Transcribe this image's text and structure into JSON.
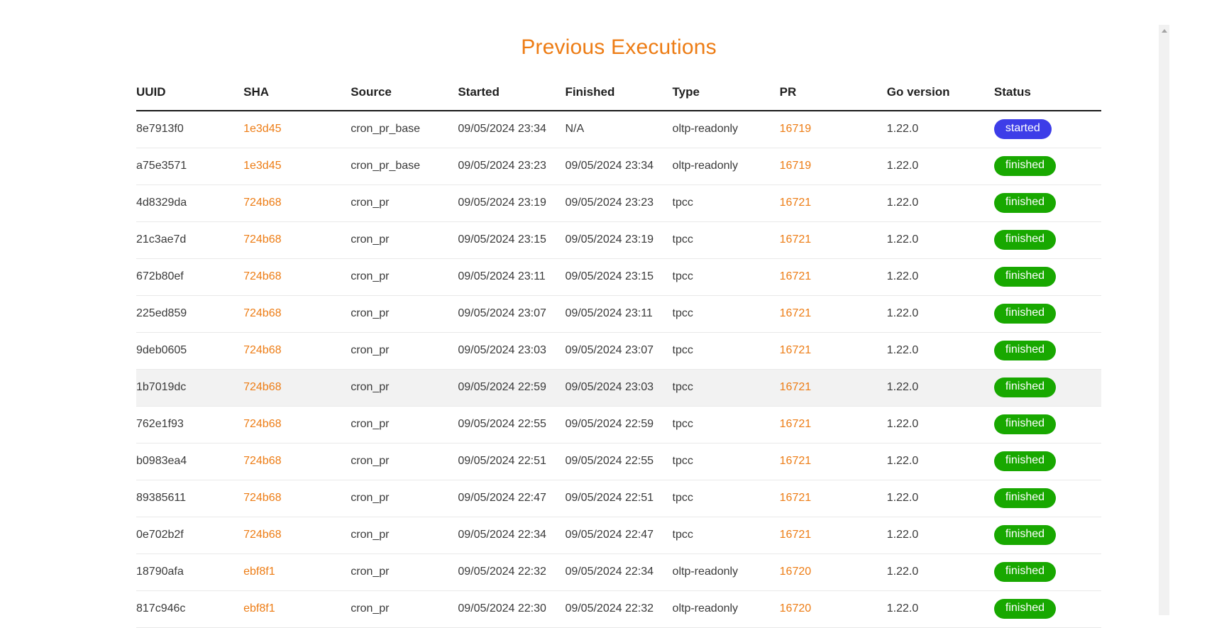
{
  "page": {
    "title": "Previous Executions",
    "title_color": "#ed7c14",
    "link_color": "#ed7c14",
    "background_color": "#ffffff"
  },
  "icons": {
    "scroll_up_arrow": "triangle-up"
  },
  "table": {
    "columns": [
      "UUID",
      "SHA",
      "Source",
      "Started",
      "Finished",
      "Type",
      "PR",
      "Go version",
      "Status"
    ],
    "status_colors": {
      "started": "#3d3de8",
      "finished": "#18a800"
    },
    "rows": [
      {
        "uuid": "8e7913f0",
        "sha": "1e3d45",
        "source": "cron_pr_base",
        "started": "09/05/2024 23:34",
        "finished": "N/A",
        "type": "oltp-readonly",
        "pr": "16719",
        "go_version": "1.22.0",
        "status": "started",
        "highlighted": false
      },
      {
        "uuid": "a75e3571",
        "sha": "1e3d45",
        "source": "cron_pr_base",
        "started": "09/05/2024 23:23",
        "finished": "09/05/2024 23:34",
        "type": "oltp-readonly",
        "pr": "16719",
        "go_version": "1.22.0",
        "status": "finished",
        "highlighted": false
      },
      {
        "uuid": "4d8329da",
        "sha": "724b68",
        "source": "cron_pr",
        "started": "09/05/2024 23:19",
        "finished": "09/05/2024 23:23",
        "type": "tpcc",
        "pr": "16721",
        "go_version": "1.22.0",
        "status": "finished",
        "highlighted": false
      },
      {
        "uuid": "21c3ae7d",
        "sha": "724b68",
        "source": "cron_pr",
        "started": "09/05/2024 23:15",
        "finished": "09/05/2024 23:19",
        "type": "tpcc",
        "pr": "16721",
        "go_version": "1.22.0",
        "status": "finished",
        "highlighted": false
      },
      {
        "uuid": "672b80ef",
        "sha": "724b68",
        "source": "cron_pr",
        "started": "09/05/2024 23:11",
        "finished": "09/05/2024 23:15",
        "type": "tpcc",
        "pr": "16721",
        "go_version": "1.22.0",
        "status": "finished",
        "highlighted": false
      },
      {
        "uuid": "225ed859",
        "sha": "724b68",
        "source": "cron_pr",
        "started": "09/05/2024 23:07",
        "finished": "09/05/2024 23:11",
        "type": "tpcc",
        "pr": "16721",
        "go_version": "1.22.0",
        "status": "finished",
        "highlighted": false
      },
      {
        "uuid": "9deb0605",
        "sha": "724b68",
        "source": "cron_pr",
        "started": "09/05/2024 23:03",
        "finished": "09/05/2024 23:07",
        "type": "tpcc",
        "pr": "16721",
        "go_version": "1.22.0",
        "status": "finished",
        "highlighted": false
      },
      {
        "uuid": "1b7019dc",
        "sha": "724b68",
        "source": "cron_pr",
        "started": "09/05/2024 22:59",
        "finished": "09/05/2024 23:03",
        "type": "tpcc",
        "pr": "16721",
        "go_version": "1.22.0",
        "status": "finished",
        "highlighted": true
      },
      {
        "uuid": "762e1f93",
        "sha": "724b68",
        "source": "cron_pr",
        "started": "09/05/2024 22:55",
        "finished": "09/05/2024 22:59",
        "type": "tpcc",
        "pr": "16721",
        "go_version": "1.22.0",
        "status": "finished",
        "highlighted": false
      },
      {
        "uuid": "b0983ea4",
        "sha": "724b68",
        "source": "cron_pr",
        "started": "09/05/2024 22:51",
        "finished": "09/05/2024 22:55",
        "type": "tpcc",
        "pr": "16721",
        "go_version": "1.22.0",
        "status": "finished",
        "highlighted": false
      },
      {
        "uuid": "89385611",
        "sha": "724b68",
        "source": "cron_pr",
        "started": "09/05/2024 22:47",
        "finished": "09/05/2024 22:51",
        "type": "tpcc",
        "pr": "16721",
        "go_version": "1.22.0",
        "status": "finished",
        "highlighted": false
      },
      {
        "uuid": "0e702b2f",
        "sha": "724b68",
        "source": "cron_pr",
        "started": "09/05/2024 22:34",
        "finished": "09/05/2024 22:47",
        "type": "tpcc",
        "pr": "16721",
        "go_version": "1.22.0",
        "status": "finished",
        "highlighted": false
      },
      {
        "uuid": "18790afa",
        "sha": "ebf8f1",
        "source": "cron_pr",
        "started": "09/05/2024 22:32",
        "finished": "09/05/2024 22:34",
        "type": "oltp-readonly",
        "pr": "16720",
        "go_version": "1.22.0",
        "status": "finished",
        "highlighted": false
      },
      {
        "uuid": "817c946c",
        "sha": "ebf8f1",
        "source": "cron_pr",
        "started": "09/05/2024 22:30",
        "finished": "09/05/2024 22:32",
        "type": "oltp-readonly",
        "pr": "16720",
        "go_version": "1.22.0",
        "status": "finished",
        "highlighted": false
      }
    ]
  }
}
